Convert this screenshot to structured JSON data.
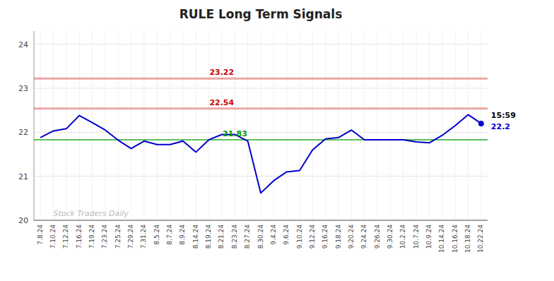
{
  "chart_data": {
    "type": "line",
    "title": "RULE Long Term Signals",
    "categories": [
      "7.8.24",
      "7.10.24",
      "7.12.24",
      "7.16.24",
      "7.19.24",
      "7.23.24",
      "7.25.24",
      "7.29.24",
      "7.31.24",
      "8.5.24",
      "8.7.24",
      "8.9.24",
      "8.14.24",
      "8.19.24",
      "8.21.24",
      "8.23.24",
      "8.27.24",
      "8.30.24",
      "9.4.24",
      "9.6.24",
      "9.10.24",
      "9.12.24",
      "9.16.24",
      "9.18.24",
      "9.20.24",
      "9.24.24",
      "9.26.24",
      "9.30.24",
      "10.2.24",
      "10.7.24",
      "10.9.24",
      "10.14.24",
      "10.16.24",
      "10.18.24",
      "10.22.24"
    ],
    "values": [
      21.88,
      22.03,
      22.08,
      22.38,
      22.22,
      22.05,
      21.82,
      21.63,
      21.8,
      21.72,
      21.72,
      21.8,
      21.55,
      21.83,
      21.95,
      21.95,
      21.8,
      20.62,
      20.9,
      21.1,
      21.13,
      21.6,
      21.85,
      21.88,
      22.05,
      21.83,
      21.83,
      21.83,
      21.83,
      21.78,
      21.76,
      21.93,
      22.15,
      22.4,
      22.2
    ],
    "color": "#0000cc",
    "ylim": [
      20.0,
      24.3
    ],
    "yticks": [
      20,
      21,
      22,
      23,
      24
    ],
    "grid": true,
    "hlines": [
      {
        "value": 23.22,
        "label": "23.22",
        "color": "#cc0000"
      },
      {
        "value": 22.54,
        "label": "22.54",
        "color": "#cc0000"
      },
      {
        "value": 21.83,
        "label": "21.83",
        "color": "#009900"
      }
    ],
    "annotations": [
      "15:59",
      "22.2"
    ],
    "watermark": "Stock Traders Daily"
  }
}
